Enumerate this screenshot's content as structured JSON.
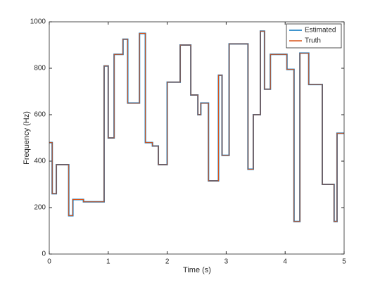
{
  "chart_data": {
    "type": "line",
    "xlabel": "Time (s)",
    "ylabel": "Frequency (Hz)",
    "x": [
      0,
      0.05,
      0.05,
      0.12,
      0.12,
      0.33,
      0.33,
      0.4,
      0.4,
      0.58,
      0.58,
      0.93,
      0.93,
      1.0,
      1.0,
      1.1,
      1.1,
      1.25,
      1.25,
      1.33,
      1.33,
      1.53,
      1.53,
      1.63,
      1.63,
      1.75,
      1.75,
      1.85,
      1.85,
      2.0,
      2.0,
      2.22,
      2.22,
      2.4,
      2.4,
      2.52,
      2.52,
      2.57,
      2.57,
      2.7,
      2.7,
      2.87,
      2.87,
      2.93,
      2.93,
      3.05,
      3.05,
      3.37,
      3.37,
      3.46,
      3.46,
      3.58,
      3.58,
      3.65,
      3.65,
      3.75,
      3.75,
      4.03,
      4.03,
      4.15,
      4.15,
      4.25,
      4.25,
      4.4,
      4.4,
      4.63,
      4.63,
      4.83,
      4.83,
      4.88,
      4.88,
      5.0
    ],
    "series": [
      {
        "name": "Estimated",
        "color": "#0072bd",
        "values": [
          480,
          480,
          260,
          260,
          385,
          385,
          165,
          165,
          235,
          235,
          225,
          225,
          810,
          810,
          500,
          500,
          860,
          860,
          925,
          925,
          650,
          650,
          950,
          950,
          480,
          480,
          465,
          465,
          385,
          385,
          740,
          740,
          900,
          900,
          685,
          685,
          600,
          600,
          650,
          650,
          315,
          315,
          770,
          770,
          425,
          425,
          905,
          905,
          365,
          365,
          600,
          600,
          960,
          960,
          710,
          710,
          860,
          860,
          795,
          795,
          140,
          140,
          865,
          865,
          730,
          730,
          300,
          300,
          140,
          140,
          520,
          520
        ]
      },
      {
        "name": "Truth",
        "color": "#d95319",
        "values": [
          480,
          480,
          260,
          260,
          385,
          385,
          165,
          165,
          235,
          235,
          225,
          225,
          810,
          810,
          500,
          500,
          860,
          860,
          925,
          925,
          650,
          650,
          950,
          950,
          480,
          480,
          465,
          465,
          385,
          385,
          740,
          740,
          900,
          900,
          685,
          685,
          600,
          600,
          650,
          650,
          315,
          315,
          770,
          770,
          425,
          425,
          905,
          905,
          365,
          365,
          600,
          600,
          960,
          960,
          710,
          710,
          860,
          860,
          795,
          795,
          140,
          140,
          865,
          865,
          730,
          730,
          300,
          300,
          140,
          140,
          520,
          520
        ]
      }
    ],
    "xlim": [
      0,
      5
    ],
    "xticks": [
      0,
      1,
      2,
      3,
      4,
      5
    ],
    "ylim": [
      0,
      1000
    ],
    "yticks": [
      0,
      200,
      400,
      600,
      800,
      1000
    ],
    "legend": "northeast"
  }
}
